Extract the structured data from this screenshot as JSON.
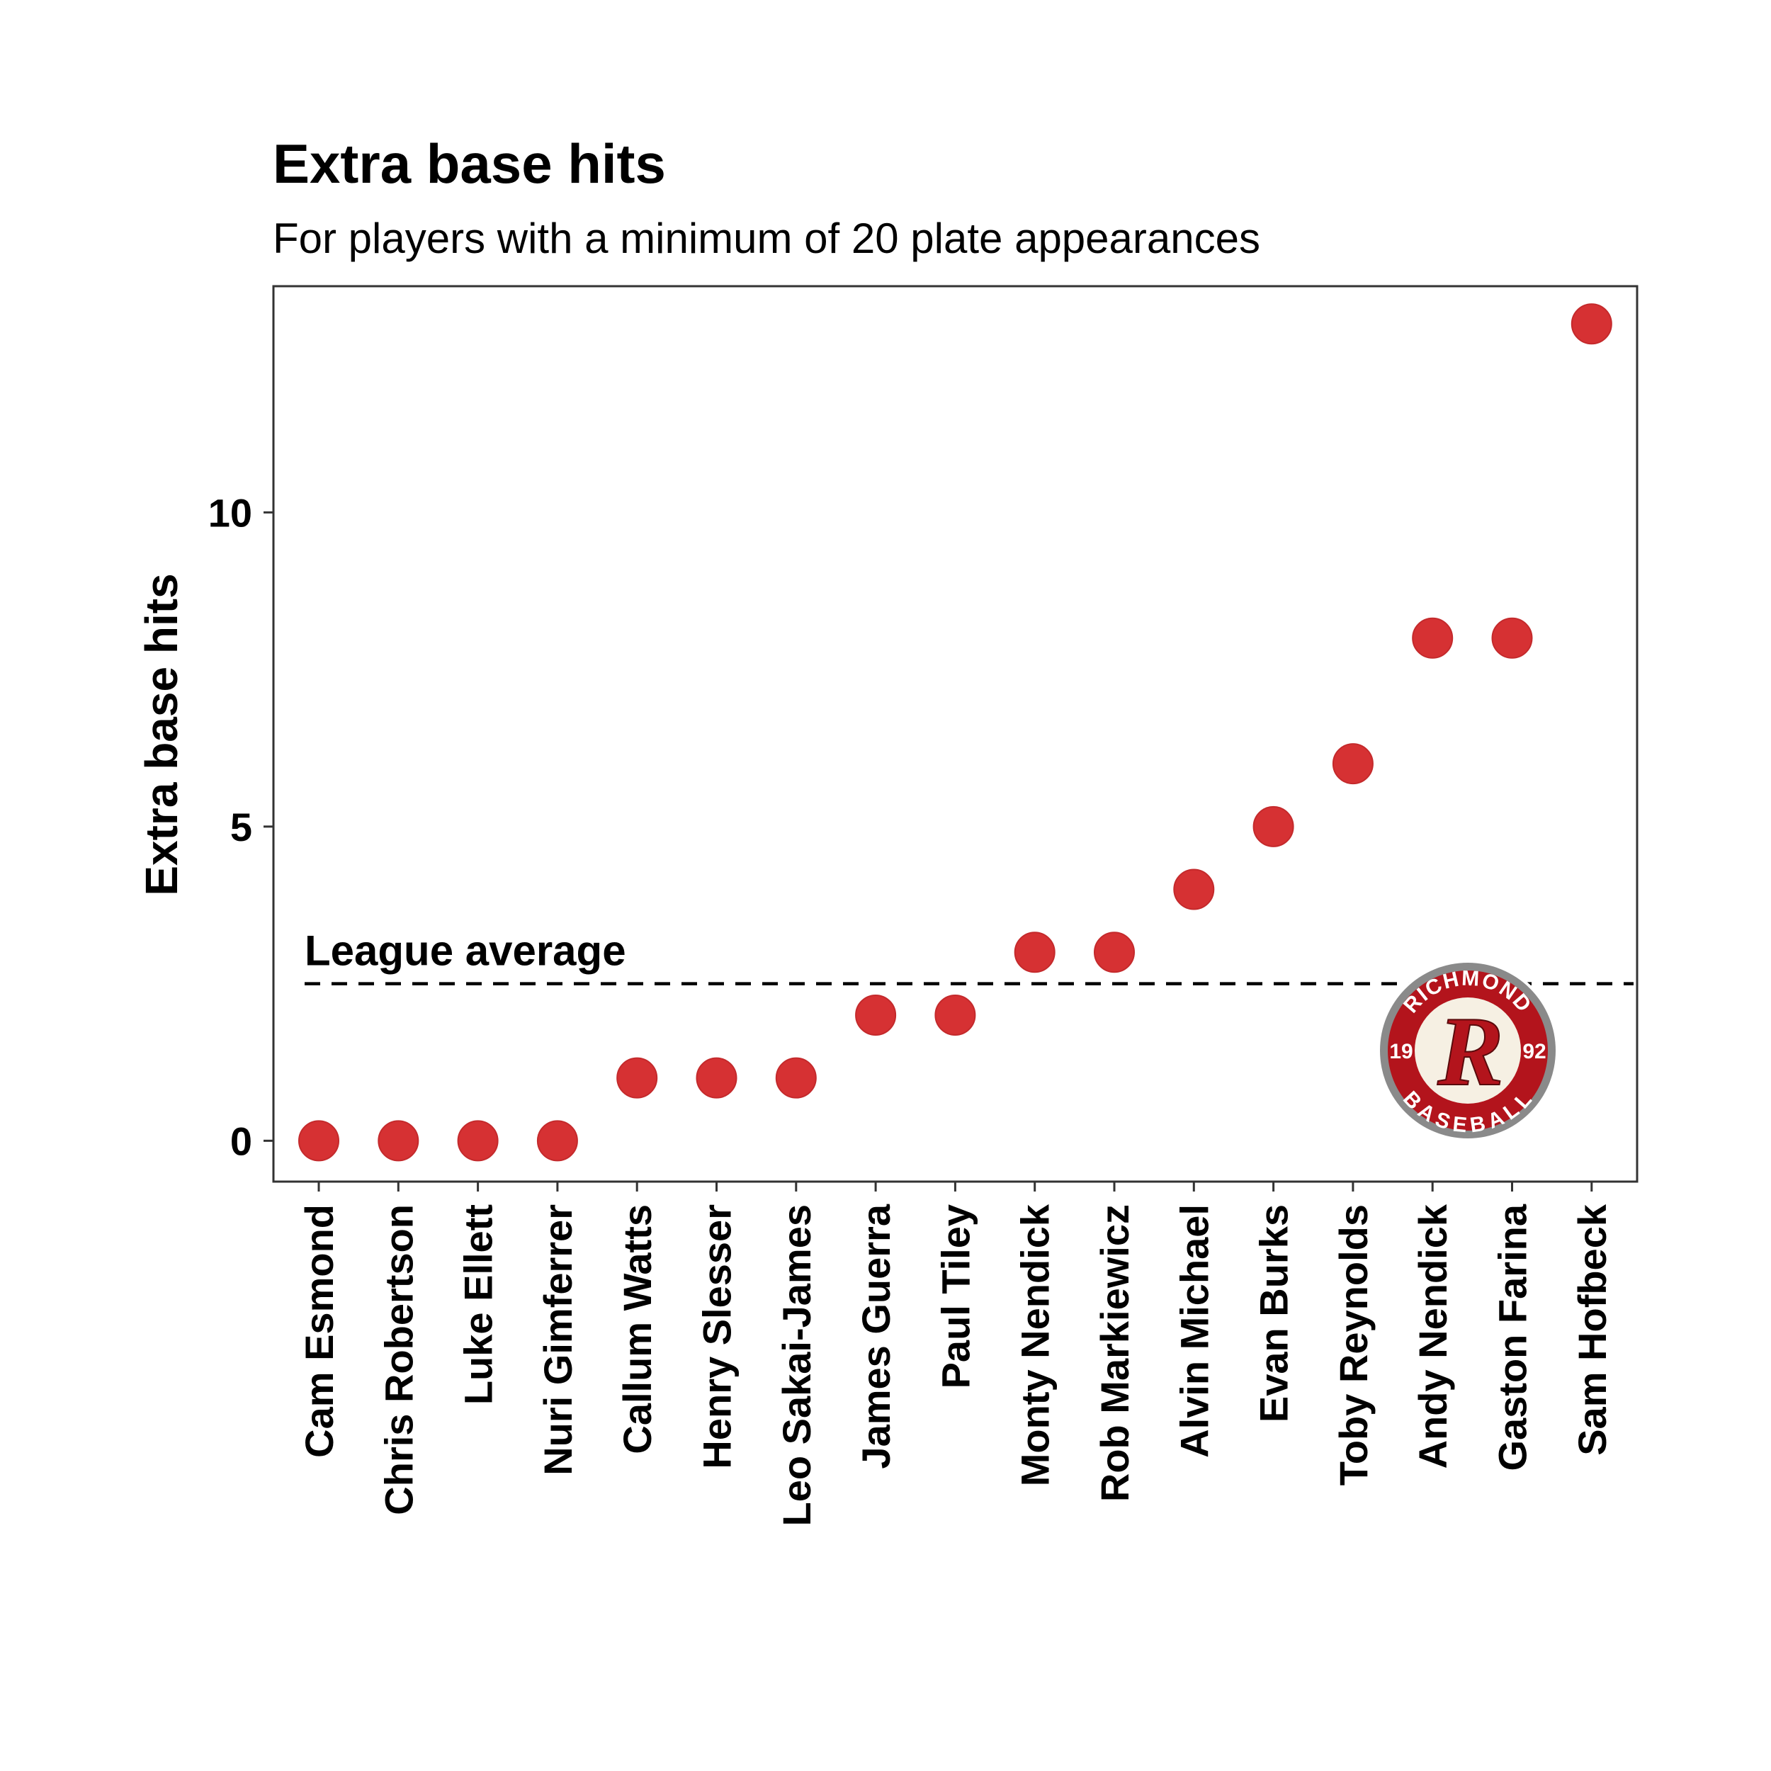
{
  "chart_data": {
    "type": "scatter",
    "title": "Extra base hits",
    "subtitle": "For players with a minimum of 20 plate appearances",
    "ylabel": "Extra base hits",
    "xlabel": "",
    "categories": [
      "Cam Esmond",
      "Chris Robertson",
      "Luke Ellett",
      "Nuri Gimferrer",
      "Callum Watts",
      "Henry Slesser",
      "Leo Sakai-James",
      "James Guerra",
      "Paul Tiley",
      "Monty Nendick",
      "Rob Markiewicz",
      "Alvin Michael",
      "Evan Burks",
      "Toby Reynolds",
      "Andy Nendick",
      "Gaston Farina",
      "Sam Hofbeck"
    ],
    "values": [
      0,
      0,
      0,
      0,
      1,
      1,
      1,
      2,
      2,
      3,
      3,
      4,
      5,
      6,
      8,
      8,
      13
    ],
    "ylim": [
      -0.65,
      13.6
    ],
    "yticks": [
      0,
      5,
      10
    ],
    "ytick_labels": [
      "0",
      "5",
      "10"
    ],
    "grid": false,
    "point_color": "#d63133",
    "reference_line": {
      "label": "League average",
      "value": 2.5,
      "style": "dashed"
    }
  },
  "logo": {
    "top_text": "RICHMOND",
    "bottom_text": "BASEBALL",
    "left_text": "19",
    "right_text": "92",
    "center_letter": "R",
    "colors": {
      "red": "#b3141c",
      "ring": "#8a8a8a",
      "cream": "#f6f0e3"
    }
  }
}
